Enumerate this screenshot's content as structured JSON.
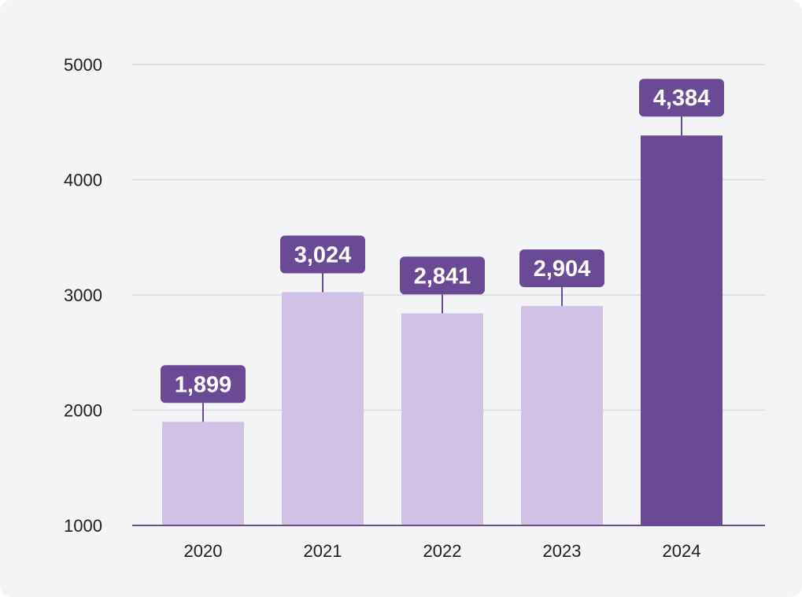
{
  "colors": {
    "background": "#f3f4f6",
    "bar_muted": "#d0c1e5",
    "bar_highlight": "#6b4a95",
    "label_box": "#6b4a95",
    "label_text": "#ffffff",
    "gridline": "#d9d9de",
    "baseline": "#6b4a95",
    "tick_text": "#1f1f1f"
  },
  "chart_data": {
    "type": "bar",
    "title": "",
    "xlabel": "",
    "ylabel": "",
    "categories": [
      "2020",
      "2021",
      "2022",
      "2023",
      "2024"
    ],
    "values": [
      1899,
      3024,
      2841,
      2904,
      4384
    ],
    "value_labels": [
      "1,899",
      "3,024",
      "2,841",
      "2,904",
      "4,384"
    ],
    "highlighted_category": "2024",
    "ylim": [
      1000,
      5000
    ],
    "yticks": [
      1000,
      2000,
      3000,
      4000,
      5000
    ],
    "ytick_labels": [
      "1000",
      "2000",
      "3000",
      "4000",
      "5000"
    ],
    "grid": true,
    "legend": "none"
  }
}
